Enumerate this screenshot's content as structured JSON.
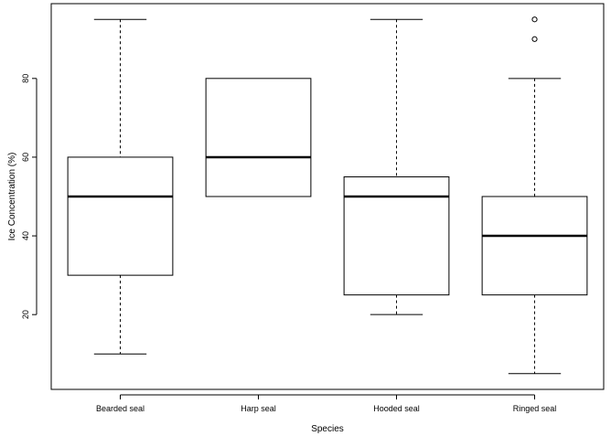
{
  "chart_data": {
    "type": "box",
    "xlabel": "Species",
    "ylabel": "Ice Concentration (%)",
    "ylim": [
      1,
      99
    ],
    "yticks": [
      20,
      40,
      60,
      80
    ],
    "grid": false,
    "categories": [
      "Bearded seal",
      "Harp seal",
      "Hooded seal",
      "Ringed seal"
    ],
    "boxes": [
      {
        "category": "Bearded seal",
        "whisker_low": 10,
        "q1": 30,
        "median": 50,
        "q3": 60,
        "whisker_high": 95,
        "outliers": []
      },
      {
        "category": "Harp seal",
        "whisker_low": 50,
        "q1": 50,
        "median": 60,
        "q3": 80,
        "whisker_high": 80,
        "outliers": []
      },
      {
        "category": "Hooded seal",
        "whisker_low": 20,
        "q1": 25,
        "median": 50,
        "q3": 55,
        "whisker_high": 95,
        "outliers": []
      },
      {
        "category": "Ringed seal",
        "whisker_low": 5,
        "q1": 25,
        "median": 40,
        "q3": 50,
        "whisker_high": 80,
        "outliers": [
          90,
          95
        ]
      }
    ]
  }
}
